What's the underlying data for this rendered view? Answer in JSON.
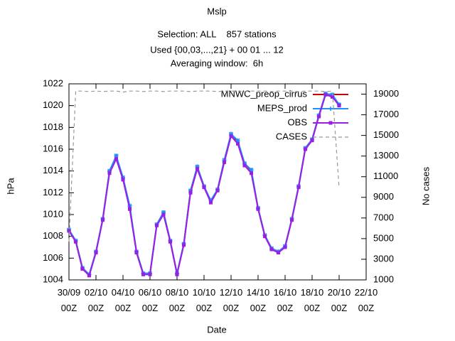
{
  "chart_data": {
    "type": "line",
    "title": "Mslp",
    "subtitle": [
      "Selection: ALL    857 stations",
      "Used {00,03,...,21} + 00 01 ... 12",
      "Averaging window:  6h"
    ],
    "x_label": "Date",
    "y_label": "hPa",
    "y2_label": "No cases",
    "x": [
      "30/09 00Z",
      "30/09 12Z",
      "01/10 00Z",
      "01/10 12Z",
      "02/10 00Z",
      "02/10 12Z",
      "03/10 00Z",
      "03/10 12Z",
      "04/10 00Z",
      "04/10 12Z",
      "05/10 00Z",
      "05/10 12Z",
      "06/10 00Z",
      "06/10 12Z",
      "07/10 00Z",
      "07/10 12Z",
      "08/10 00Z",
      "08/10 12Z",
      "09/10 00Z",
      "09/10 12Z",
      "10/10 00Z",
      "10/10 12Z",
      "11/10 00Z",
      "11/10 12Z",
      "12/10 00Z",
      "12/10 12Z",
      "13/10 00Z",
      "13/10 12Z",
      "14/10 00Z",
      "14/10 12Z",
      "15/10 00Z",
      "15/10 12Z",
      "16/10 00Z",
      "16/10 12Z",
      "17/10 00Z",
      "17/10 12Z",
      "18/10 00Z",
      "18/10 12Z",
      "19/10 00Z",
      "19/10 12Z",
      "20/10 00Z"
    ],
    "series": [
      {
        "name": "MNWC_preop_cirrus",
        "color": "#cc0000",
        "marker": "none",
        "values": [
          1008.6,
          1007.6,
          1005.1,
          1004.5,
          1006.6,
          1009.6,
          1014.0,
          1015.3,
          1013.4,
          1010.7,
          1006.6,
          1004.6,
          1004.6,
          1009.1,
          1010.2,
          1007.6,
          1004.6,
          1007.3,
          1012.2,
          1014.4,
          1012.6,
          1011.2,
          1012.3,
          1015.0,
          1017.4,
          1016.7,
          1014.7,
          1014.0,
          1010.6,
          1008.1,
          1006.9,
          1006.6,
          1007.1,
          1009.6,
          1012.6,
          1016.1,
          1016.9,
          1019.1,
          1021.1,
          1020.9,
          1020.1
        ]
      },
      {
        "name": "MEPS_prod",
        "color": "#1e90ff",
        "marker": "star",
        "values": [
          1008.6,
          1007.6,
          1005.1,
          1004.5,
          1006.6,
          1009.6,
          1014.0,
          1015.4,
          1013.4,
          1010.8,
          1006.6,
          1004.6,
          1004.6,
          1009.1,
          1010.2,
          1007.6,
          1004.6,
          1007.3,
          1012.2,
          1014.4,
          1012.6,
          1011.3,
          1012.3,
          1015.0,
          1017.4,
          1016.8,
          1014.7,
          1014.1,
          1010.6,
          1008.1,
          1006.9,
          1006.6,
          1007.1,
          1009.6,
          1012.6,
          1016.1,
          1016.9,
          1019.1,
          1021.1,
          1021.0,
          1020.1
        ]
      },
      {
        "name": "OBS",
        "color": "#9a1ee6",
        "marker": "square",
        "values": [
          1008.5,
          1007.5,
          1005.0,
          1004.4,
          1006.5,
          1009.5,
          1013.8,
          1015.1,
          1013.2,
          1010.5,
          1006.5,
          1004.5,
          1004.5,
          1009.0,
          1010.0,
          1007.5,
          1004.5,
          1007.2,
          1012.0,
          1014.2,
          1012.5,
          1011.1,
          1012.2,
          1014.8,
          1017.2,
          1016.5,
          1014.5,
          1013.8,
          1010.5,
          1008.0,
          1006.8,
          1006.5,
          1007.0,
          1009.5,
          1012.5,
          1016.0,
          1016.8,
          1019.0,
          1021.0,
          1020.8,
          1020.0
        ]
      },
      {
        "name": "CASES",
        "color": "#999999",
        "marker": "none",
        "dashed": true,
        "axis": "y2",
        "values": [
          4700,
          19300,
          19300,
          19250,
          19300,
          19250,
          19300,
          19300,
          19200,
          19300,
          19300,
          19250,
          19300,
          19300,
          19250,
          19300,
          19300,
          19300,
          19250,
          19300,
          19300,
          19300,
          19250,
          19300,
          19300,
          19300,
          19250,
          19300,
          19300,
          19300,
          19250,
          19300,
          19300,
          19300,
          19250,
          19300,
          19300,
          19300,
          19250,
          19300,
          9900
        ]
      }
    ],
    "xlim": [
      "30/09 00Z",
      "22/10 00Z"
    ],
    "xticks": [
      "30/09 00Z",
      "02/10 00Z",
      "04/10 00Z",
      "06/10 00Z",
      "08/10 00Z",
      "10/10 00Z",
      "12/10 00Z",
      "14/10 00Z",
      "16/10 00Z",
      "18/10 00Z",
      "20/10 00Z",
      "22/10 00Z"
    ],
    "ylim": [
      1004,
      1022
    ],
    "yticks": [
      1004,
      1006,
      1008,
      1010,
      1012,
      1014,
      1016,
      1018,
      1020,
      1022
    ],
    "y2lim": [
      1000,
      20000
    ],
    "y2ticks": [
      1000,
      3000,
      5000,
      7000,
      9000,
      11000,
      13000,
      15000,
      17000,
      19000
    ],
    "legend": "top-right",
    "grid": false
  }
}
